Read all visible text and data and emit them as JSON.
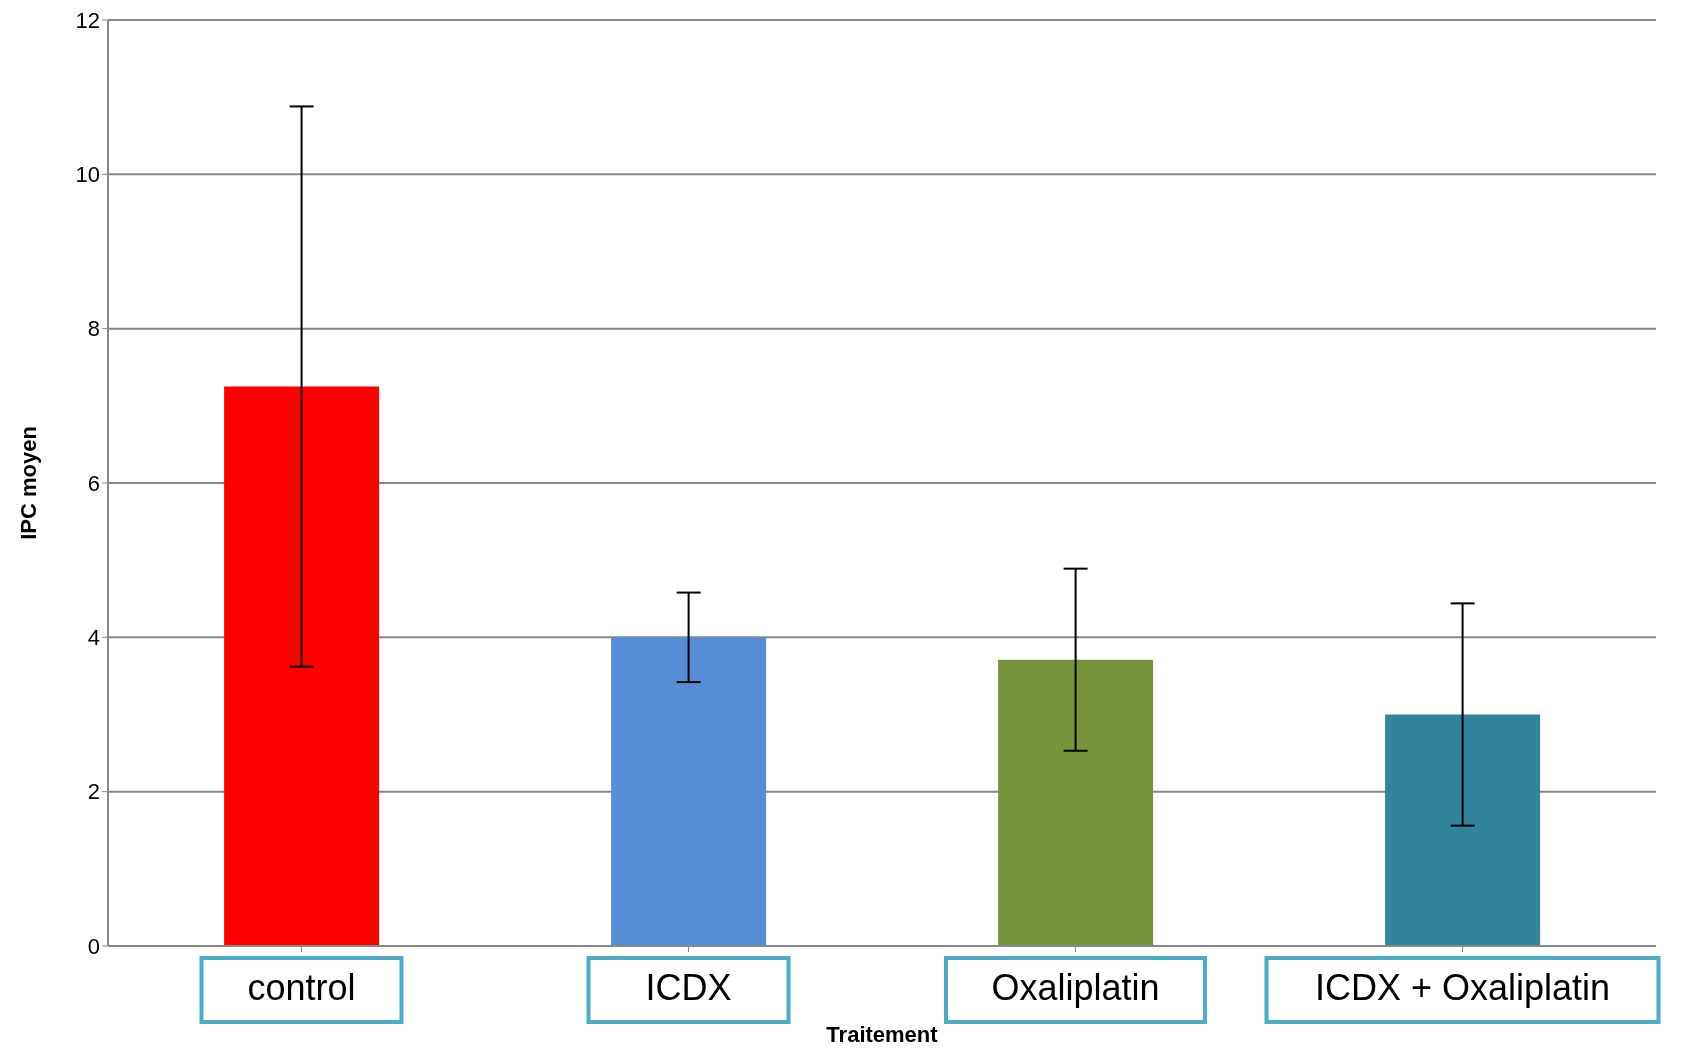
{
  "chart_data": {
    "type": "bar",
    "xlabel": "Traitement",
    "ylabel": "IPC moyen",
    "categories": [
      "control",
      "ICDX",
      "Oxaliplatin",
      "ICDX + Oxaliplatin"
    ],
    "values": [
      7.25,
      4.0,
      3.71,
      3.0
    ],
    "colors": [
      "#ff0000",
      "#558ed5",
      "#77933c",
      "#31849b"
    ],
    "errors": [
      3.63,
      0.58,
      1.18,
      1.44
    ],
    "ylim": [
      0,
      12
    ],
    "yticks": [
      0,
      2,
      4,
      6,
      8,
      10,
      12
    ],
    "grid": "y"
  }
}
